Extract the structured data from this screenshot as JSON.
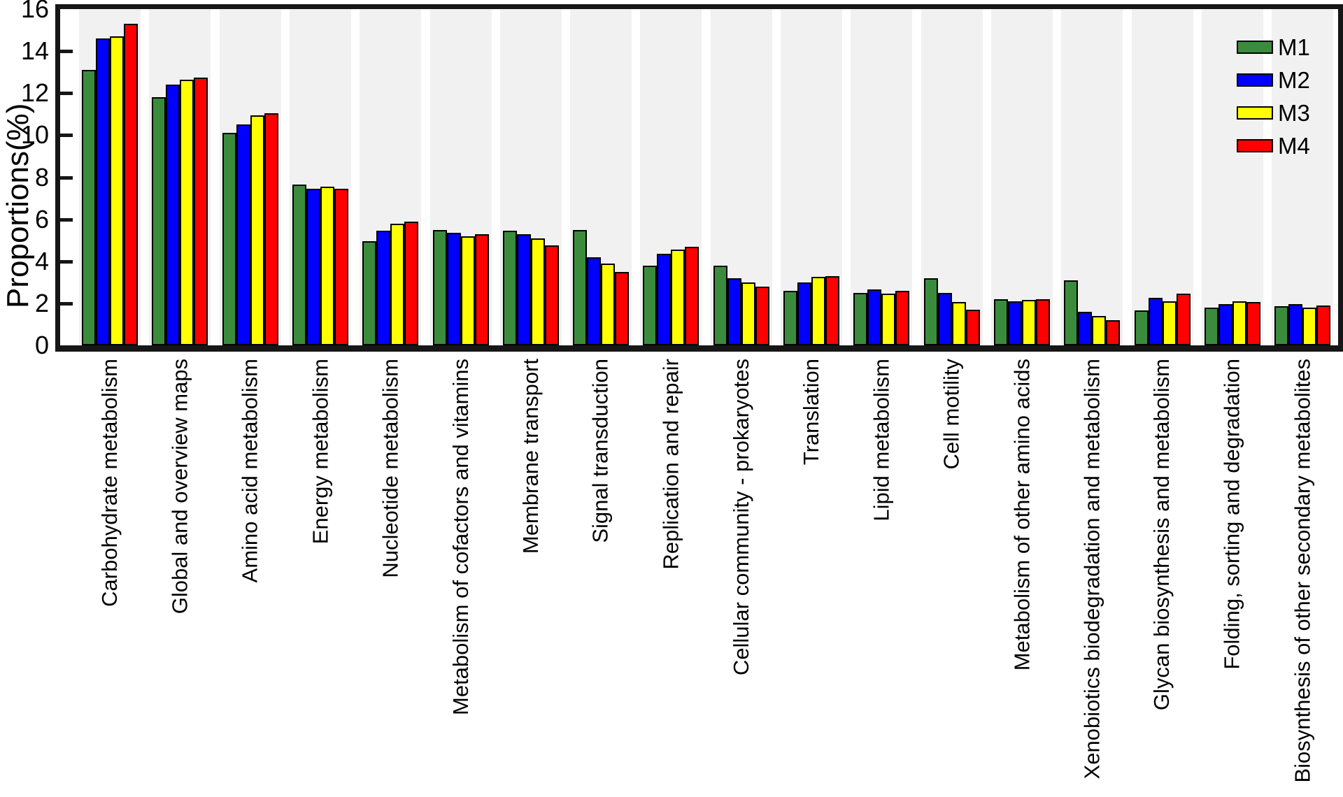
{
  "figure": {
    "title": "",
    "frame_color": "#161616",
    "stripe_color": "#f1f1f1",
    "background_color": "#ffffff"
  },
  "legend": {
    "position": "top-right",
    "entries": [
      {
        "label": "M1",
        "color": "#3A8C3C"
      },
      {
        "label": "M2",
        "color": "#0000FF"
      },
      {
        "label": "M3",
        "color": "#FFFF00"
      },
      {
        "label": "M4",
        "color": "#FF0000"
      }
    ]
  },
  "chart_data": {
    "type": "bar",
    "title": "",
    "xlabel": "",
    "ylabel": "Proportions(%)",
    "ylim": [
      0,
      16
    ],
    "yticks": [
      0,
      2,
      4,
      6,
      8,
      10,
      12,
      14,
      16
    ],
    "grid": false,
    "legend_position": "top-right",
    "bar_outline_color": "#000000",
    "categories": [
      "Carbohydrate metabolism",
      "Global and overview maps",
      "Amino acid metabolism",
      "Energy metabolism",
      "Nucleotide metabolism",
      "Metabolism of cofactors and vitamins",
      "Membrane transport",
      "Signal transduction",
      "Replication and repair",
      "Cellular community - prokaryotes",
      "Translation",
      "Lipid metabolism",
      "Cell motility",
      "Metabolism of other amino acids",
      "Xenobiotics biodegradation and metabolism",
      "Glycan biosynthesis and metabolism",
      "Folding, sorting and degradation",
      "Biosynthesis of other secondary metabolites"
    ],
    "series": [
      {
        "name": "M1",
        "color": "#3A8C3C",
        "values": [
          13.1,
          11.8,
          10.1,
          7.65,
          4.95,
          5.5,
          5.45,
          5.5,
          3.8,
          3.8,
          2.6,
          2.5,
          3.2,
          2.2,
          3.1,
          1.65,
          1.8,
          1.85
        ]
      },
      {
        "name": "M2",
        "color": "#0000FF",
        "values": [
          14.6,
          12.4,
          10.5,
          7.45,
          5.45,
          5.35,
          5.3,
          4.2,
          4.35,
          3.2,
          3.0,
          2.65,
          2.5,
          2.1,
          1.6,
          2.25,
          1.95,
          1.95
        ]
      },
      {
        "name": "M3",
        "color": "#FFFF00",
        "values": [
          14.7,
          12.65,
          10.95,
          7.55,
          5.8,
          5.2,
          5.1,
          3.9,
          4.55,
          3.0,
          3.25,
          2.45,
          2.05,
          2.15,
          1.4,
          2.1,
          2.1,
          1.8
        ]
      },
      {
        "name": "M4",
        "color": "#FF0000",
        "values": [
          15.3,
          12.75,
          11.05,
          7.45,
          5.9,
          5.3,
          4.75,
          3.5,
          4.7,
          2.8,
          3.3,
          2.6,
          1.7,
          2.2,
          1.2,
          2.45,
          2.05,
          1.9
        ]
      }
    ]
  }
}
